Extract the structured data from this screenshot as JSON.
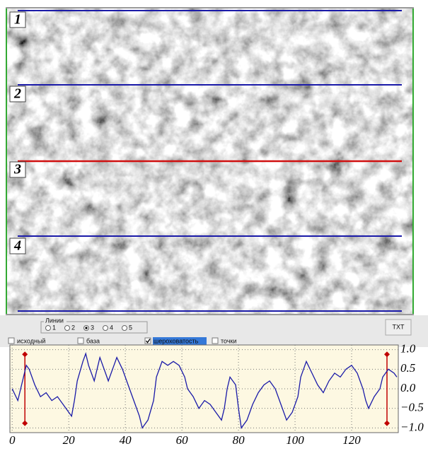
{
  "image": {
    "line_labels": [
      "1",
      "2",
      "3",
      "4"
    ]
  },
  "controls": {
    "group_label": "Линии",
    "options": [
      "1",
      "2",
      "3",
      "4",
      "5"
    ],
    "selected": "3",
    "button": "TXT",
    "checkboxes": [
      {
        "label": "исходный",
        "checked": false
      },
      {
        "label": "база",
        "checked": false
      },
      {
        "label": "шероховатость",
        "checked": true
      },
      {
        "label": "точки",
        "checked": false
      }
    ]
  },
  "chart_data": {
    "type": "line",
    "color": "#1a1aa8",
    "x": [
      0,
      2,
      5,
      6,
      8,
      10,
      12,
      14,
      16,
      18,
      20,
      21,
      22,
      23,
      25,
      26,
      27,
      29,
      30,
      31,
      33,
      34,
      36,
      37,
      39,
      41,
      43,
      45,
      46,
      48,
      50,
      51,
      53,
      55,
      57,
      59,
      61,
      62,
      64,
      66,
      68,
      70,
      72,
      74,
      75,
      76,
      77,
      79,
      80,
      81,
      83,
      85,
      87,
      89,
      91,
      93,
      95,
      97,
      99,
      101,
      102,
      104,
      106,
      108,
      110,
      112,
      114,
      116,
      118,
      120,
      122,
      124,
      125,
      126,
      128,
      130,
      131,
      133,
      135,
      136
    ],
    "values": [
      0.0,
      -0.3,
      0.6,
      0.5,
      0.1,
      -0.2,
      -0.1,
      -0.3,
      -0.2,
      -0.4,
      -0.6,
      -0.7,
      -0.3,
      0.2,
      0.7,
      0.9,
      0.6,
      0.2,
      0.5,
      0.8,
      0.4,
      0.2,
      0.6,
      0.8,
      0.5,
      0.1,
      -0.3,
      -0.7,
      -1.0,
      -0.8,
      -0.3,
      0.3,
      0.7,
      0.6,
      0.7,
      0.6,
      0.3,
      0.0,
      -0.2,
      -0.5,
      -0.3,
      -0.4,
      -0.6,
      -0.8,
      -0.5,
      0.0,
      0.3,
      0.1,
      -0.5,
      -1.0,
      -0.8,
      -0.4,
      -0.1,
      0.1,
      0.2,
      0.0,
      -0.4,
      -0.8,
      -0.6,
      -0.2,
      0.3,
      0.7,
      0.4,
      0.1,
      -0.1,
      0.2,
      0.4,
      0.3,
      0.5,
      0.6,
      0.4,
      0.0,
      -0.3,
      -0.5,
      -0.2,
      0.0,
      0.3,
      0.5,
      0.4,
      0.3
    ],
    "xlim": [
      -0.8,
      136.5
    ],
    "ylim": [
      -1.12,
      1.12
    ],
    "xticks": [
      0,
      20,
      40,
      60,
      80,
      100,
      120
    ],
    "yticks": [
      {
        "value": 1,
        "label": "1.0"
      },
      {
        "value": 0.5,
        "label": "0.5"
      },
      {
        "value": 0,
        "label": "0.0"
      },
      {
        "value": -0.5,
        "label": "−0.5"
      },
      {
        "value": -1,
        "label": "−1.0"
      }
    ],
    "grid": true,
    "cursors": {
      "x": [
        4.5,
        132.5
      ],
      "y": [
        -0.88,
        0.88
      ],
      "color": "#c00000"
    }
  }
}
